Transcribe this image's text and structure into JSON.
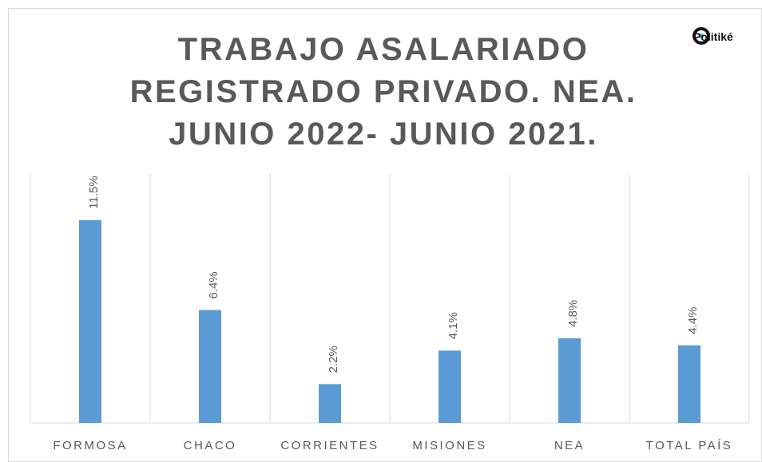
{
  "chart_data": {
    "type": "bar",
    "title": "TRABAJO ASALARIADO REGISTRADO PRIVADO. NEA. JUNIO 2022- JUNIO 2021.",
    "logo": "Politiké",
    "categories": [
      "FORMOSA",
      "CHACO",
      "CORRIENTES",
      "MISIONES",
      "NEA",
      "TOTAL PAÍS"
    ],
    "values": [
      11.5,
      6.4,
      2.2,
      4.1,
      4.8,
      4.4
    ],
    "value_labels": [
      "11.5%",
      "6.4%",
      "2.2%",
      "4.1%",
      "4.8%",
      "4.4%"
    ],
    "color": "#5b9bd5"
  }
}
